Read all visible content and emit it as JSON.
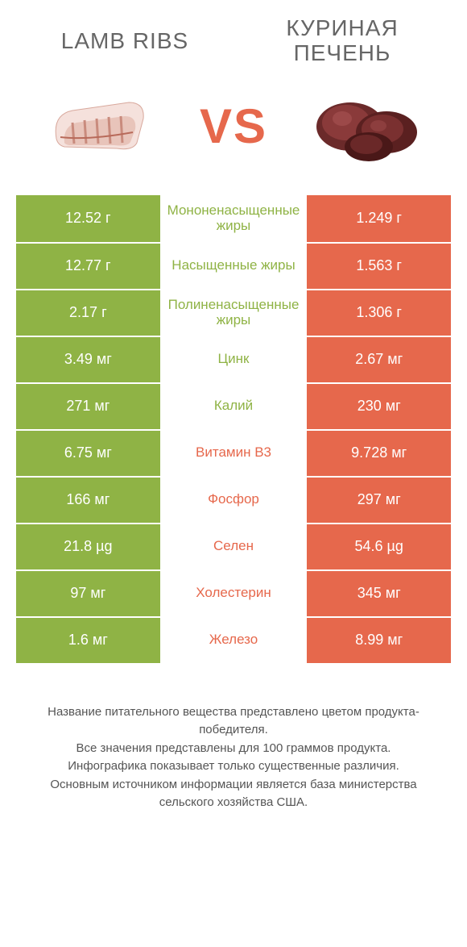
{
  "header": {
    "left_title": "LAMB RIBS",
    "right_title_line1": "КУРИНАЯ",
    "right_title_line2": "ПЕЧЕНЬ",
    "vs": "VS"
  },
  "colors": {
    "green": "#8fb345",
    "orange": "#e6684c",
    "white": "#ffffff",
    "text_gray": "#666666"
  },
  "rows": [
    {
      "left": "12.52 г",
      "label": "Мононенасыщенные жиры",
      "right": "1.249 г",
      "winner": "left"
    },
    {
      "left": "12.77 г",
      "label": "Насыщенные жиры",
      "right": "1.563 г",
      "winner": "left"
    },
    {
      "left": "2.17 г",
      "label": "Полиненасыщенные жиры",
      "right": "1.306 г",
      "winner": "left"
    },
    {
      "left": "3.49 мг",
      "label": "Цинк",
      "right": "2.67 мг",
      "winner": "left"
    },
    {
      "left": "271 мг",
      "label": "Калий",
      "right": "230 мг",
      "winner": "left"
    },
    {
      "left": "6.75 мг",
      "label": "Витамин B3",
      "right": "9.728 мг",
      "winner": "right"
    },
    {
      "left": "166 мг",
      "label": "Фосфор",
      "right": "297 мг",
      "winner": "right"
    },
    {
      "left": "21.8 µg",
      "label": "Селен",
      "right": "54.6 µg",
      "winner": "right"
    },
    {
      "left": "97 мг",
      "label": "Холестерин",
      "right": "345 мг",
      "winner": "right"
    },
    {
      "left": "1.6 мг",
      "label": "Железо",
      "right": "8.99 мг",
      "winner": "right"
    }
  ],
  "footer": {
    "line1": "Название питательного вещества представлено цветом продукта-победителя.",
    "line2": "Все значения представлены для 100 граммов продукта.",
    "line3": "Инфографика показывает только существенные различия.",
    "line4": "Основным источником информации является база министерства сельского хозяйства США."
  }
}
